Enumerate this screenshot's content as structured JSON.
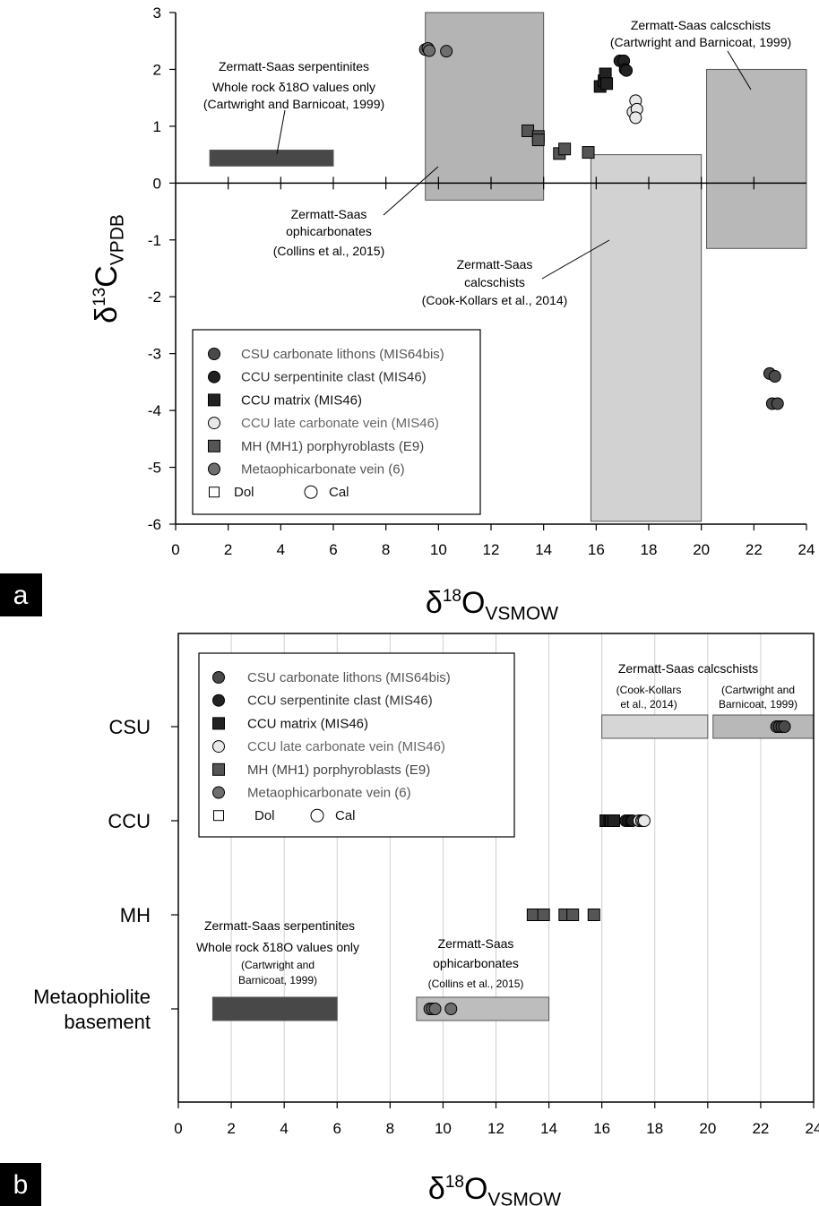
{
  "panel_labels": {
    "a": "a",
    "b": "b"
  },
  "colors": {
    "csu": "#4a4a4a",
    "ccu_clast": "#222222",
    "ccu_matrix": "#222222",
    "ccu_vein": "#e8e8e8",
    "mh": "#555555",
    "metaophi": "#6e6e6e",
    "serp_bar": "#484848",
    "ophicarb_box": "#b4b4b4",
    "cook_box": "#d2d2d2",
    "cartw_box": "#b8b8b8"
  },
  "chart_data": [
    {
      "panel": "a",
      "type": "scatter",
      "xlim": [
        0,
        24
      ],
      "ylim": [
        -6,
        3
      ],
      "xticks": [
        "0",
        "2",
        "4",
        "6",
        "8",
        "10",
        "12",
        "14",
        "16",
        "18",
        "20",
        "22",
        "24"
      ],
      "yticks": [
        "-6",
        "-5",
        "-4",
        "-3",
        "-2",
        "-1",
        "0",
        "1",
        "2",
        "3"
      ],
      "xlabel": {
        "main": "δ",
        "sup": "18",
        "rest": "O",
        "sub": "VSMOW"
      },
      "ylabel": {
        "main": "δ",
        "sup": "13",
        "rest": "C",
        "sub": "VPDB"
      },
      "boxes": [
        {
          "name": "serpentinites",
          "x": [
            1.3,
            6.0
          ],
          "y": [
            0.3,
            0.58
          ],
          "color": "#484848"
        },
        {
          "name": "ophicarbonates",
          "x": [
            9.5,
            14.0
          ],
          "y": [
            -0.3,
            3.0
          ],
          "color": "#b4b4b4"
        },
        {
          "name": "cook_calcschists",
          "x": [
            15.8,
            20.0
          ],
          "y": [
            -5.95,
            0.5
          ],
          "color": "#d2d2d2"
        },
        {
          "name": "cartwright_calcschists",
          "x": [
            20.2,
            24.0
          ],
          "y": [
            -1.15,
            2.0
          ],
          "color": "#b8b8b8"
        }
      ],
      "annotations": [
        {
          "lines": [
            "Zermatt-Saas serpentinites",
            "Whole rock δ18O values only",
            "(Cartwright and Barnicoat, 1999)"
          ]
        },
        {
          "lines": [
            "Zermatt-Saas",
            "ophicarbonates",
            "(Collins et al., 2015)"
          ]
        },
        {
          "lines": [
            "Zermatt-Saas",
            "calcschists",
            "(Cook-Kollars et al., 2014)"
          ]
        },
        {
          "lines": [
            "Zermatt-Saas calcschists",
            "(Cartwright and Barnicoat, 1999)"
          ]
        }
      ],
      "series": [
        {
          "name": "CSU carbonate lithons (MIS64bis)",
          "marker": "circle",
          "color": "#4a4a4a",
          "points": [
            [
              22.6,
              -3.35
            ],
            [
              22.8,
              -3.4
            ],
            [
              22.7,
              -3.88
            ],
            [
              22.9,
              -3.88
            ]
          ]
        },
        {
          "name": "CCU serpentinite clast (MIS46)",
          "marker": "circle",
          "color": "#222222",
          "points": [
            [
              16.9,
              2.15
            ],
            [
              17.05,
              2.15
            ],
            [
              17.1,
              2.0
            ],
            [
              17.15,
              1.98
            ]
          ]
        },
        {
          "name": "CCU matrix (MIS46)",
          "marker": "square",
          "color": "#222222",
          "points": [
            [
              16.15,
              1.7
            ],
            [
              16.3,
              1.8
            ],
            [
              16.35,
              1.92
            ],
            [
              16.4,
              1.75
            ]
          ]
        },
        {
          "name": "CCU late carbonate vein (MIS46)",
          "marker": "circle",
          "color": "#e8e8e8",
          "points": [
            [
              17.5,
              1.45
            ],
            [
              17.4,
              1.25
            ],
            [
              17.55,
              1.3
            ],
            [
              17.5,
              1.15
            ]
          ]
        },
        {
          "name": "MH (MH1) porphyroblasts (E9)",
          "marker": "square",
          "color": "#555555",
          "points": [
            [
              13.4,
              0.92
            ],
            [
              13.8,
              0.82
            ],
            [
              13.8,
              0.76
            ],
            [
              14.6,
              0.52
            ],
            [
              14.8,
              0.6
            ],
            [
              15.7,
              0.54
            ]
          ]
        },
        {
          "name": "Metaophicarbonate vein (6)",
          "marker": "circle",
          "color": "#6e6e6e",
          "points": [
            [
              9.5,
              2.35
            ],
            [
              9.6,
              2.37
            ],
            [
              9.65,
              2.33
            ],
            [
              10.3,
              2.32
            ]
          ]
        }
      ],
      "legend": {
        "items": [
          {
            "label": "CSU carbonate lithons (MIS64bis)",
            "marker": "circle",
            "color": "#4a4a4a",
            "text_color": "#555555"
          },
          {
            "label": "CCU serpentinite clast (MIS46)",
            "marker": "circle",
            "color": "#222222",
            "text_color": "#333333"
          },
          {
            "label": "CCU matrix (MIS46)",
            "marker": "square",
            "color": "#222222",
            "text_color": "#111111"
          },
          {
            "label": "CCU late carbonate vein (MIS46)",
            "marker": "circle",
            "color": "#e8e8e8",
            "text_color": "#666666"
          },
          {
            "label": "MH (MH1) porphyroblasts (E9)",
            "marker": "square",
            "color": "#555555",
            "text_color": "#444444"
          },
          {
            "label": "Metaophicarbonate vein (6)",
            "marker": "circle",
            "color": "#6e6e6e",
            "text_color": "#555555"
          }
        ],
        "key_dol": "Dol",
        "key_cal": "Cal",
        "placement": "bottom-left"
      }
    },
    {
      "panel": "b",
      "type": "scatter",
      "xlim": [
        0,
        24
      ],
      "xticks": [
        "0",
        "2",
        "4",
        "6",
        "8",
        "10",
        "12",
        "14",
        "16",
        "18",
        "20",
        "22",
        "24"
      ],
      "xlabel": {
        "main": "δ",
        "sup": "18",
        "rest": "O",
        "sub": "VSMOW"
      },
      "categories": [
        "CSU",
        "CCU",
        "MH",
        "Metaophiolite basement"
      ],
      "category_lines": [
        [
          "CSU"
        ],
        [
          "CCU"
        ],
        [
          "MH"
        ],
        [
          "Metaophiolite",
          "basement"
        ]
      ],
      "grid": true,
      "boxes": [
        {
          "name": "serpentinites",
          "row": 3,
          "x": [
            1.3,
            6.0
          ],
          "color": "#484848"
        },
        {
          "name": "ophicarbonates",
          "row": 3,
          "x": [
            9.0,
            14.0
          ],
          "color": "#bdbdbd"
        },
        {
          "name": "cook_calcschists",
          "row": 0,
          "x": [
            16.0,
            20.0
          ],
          "color": "#d6d6d6"
        },
        {
          "name": "cartwright_calcschists",
          "row": 0,
          "x": [
            20.2,
            24.0
          ],
          "color": "#b8b8b8"
        }
      ],
      "annotations": [
        {
          "lines": [
            "Zermatt-Saas calcschists"
          ]
        },
        {
          "lines": [
            "(Cook-Kollars",
            "et al., 2014)"
          ]
        },
        {
          "lines": [
            "(Cartwright and",
            "Barnicoat, 1999)"
          ]
        },
        {
          "lines": [
            "Zermatt-Saas serpentinites",
            "Whole rock δ18O values only"
          ]
        },
        {
          "lines": [
            "(Cartwright and",
            "Barnicoat, 1999)"
          ]
        },
        {
          "lines": [
            "Zermatt-Saas",
            "ophicarbonates"
          ]
        },
        {
          "lines": [
            "(Collins et al., 2015)"
          ]
        }
      ],
      "series": [
        {
          "name": "CSU carbonate lithons (MIS64bis)",
          "marker": "circle",
          "color": "#4a4a4a",
          "row": 0,
          "x": [
            22.6,
            22.7,
            22.8,
            22.9
          ]
        },
        {
          "name": "CCU matrix (MIS46)",
          "marker": "square",
          "color": "#222222",
          "row": 1,
          "x": [
            16.15,
            16.3,
            16.35,
            16.45
          ]
        },
        {
          "name": "CCU serpentinite clast (MIS46)",
          "marker": "circle",
          "color": "#222222",
          "row": 1,
          "x": [
            16.9,
            17.0,
            17.1,
            17.15
          ]
        },
        {
          "name": "CCU late carbonate vein (MIS46)",
          "marker": "circle",
          "color": "#e8e8e8",
          "row": 1,
          "x": [
            17.4,
            17.5,
            17.55,
            17.6
          ]
        },
        {
          "name": "MH (MH1) porphyroblasts (E9)",
          "marker": "square",
          "color": "#555555",
          "row": 2,
          "x": [
            13.4,
            13.8,
            14.6,
            14.9,
            15.7
          ]
        },
        {
          "name": "Metaophicarbonate vein (6)",
          "marker": "circle",
          "color": "#6e6e6e",
          "row": 3,
          "x": [
            9.5,
            9.6,
            9.7,
            10.3
          ]
        }
      ],
      "legend": {
        "items": [
          {
            "label": "CSU carbonate lithons (MIS64bis)",
            "marker": "circle",
            "color": "#4a4a4a",
            "text_color": "#555555"
          },
          {
            "label": "CCU serpentinite clast (MIS46)",
            "marker": "circle",
            "color": "#222222",
            "text_color": "#333333"
          },
          {
            "label": "CCU matrix (MIS46)",
            "marker": "square",
            "color": "#222222",
            "text_color": "#111111"
          },
          {
            "label": "CCU late carbonate vein (MIS46)",
            "marker": "circle",
            "color": "#e8e8e8",
            "text_color": "#666666"
          },
          {
            "label": "MH (MH1) porphyroblasts (E9)",
            "marker": "square",
            "color": "#555555",
            "text_color": "#444444"
          },
          {
            "label": "Metaophicarbonate vein (6)",
            "marker": "circle",
            "color": "#6e6e6e",
            "text_color": "#555555"
          }
        ],
        "key_dol": "Dol",
        "key_cal": "Cal",
        "placement": "top-left"
      }
    }
  ]
}
